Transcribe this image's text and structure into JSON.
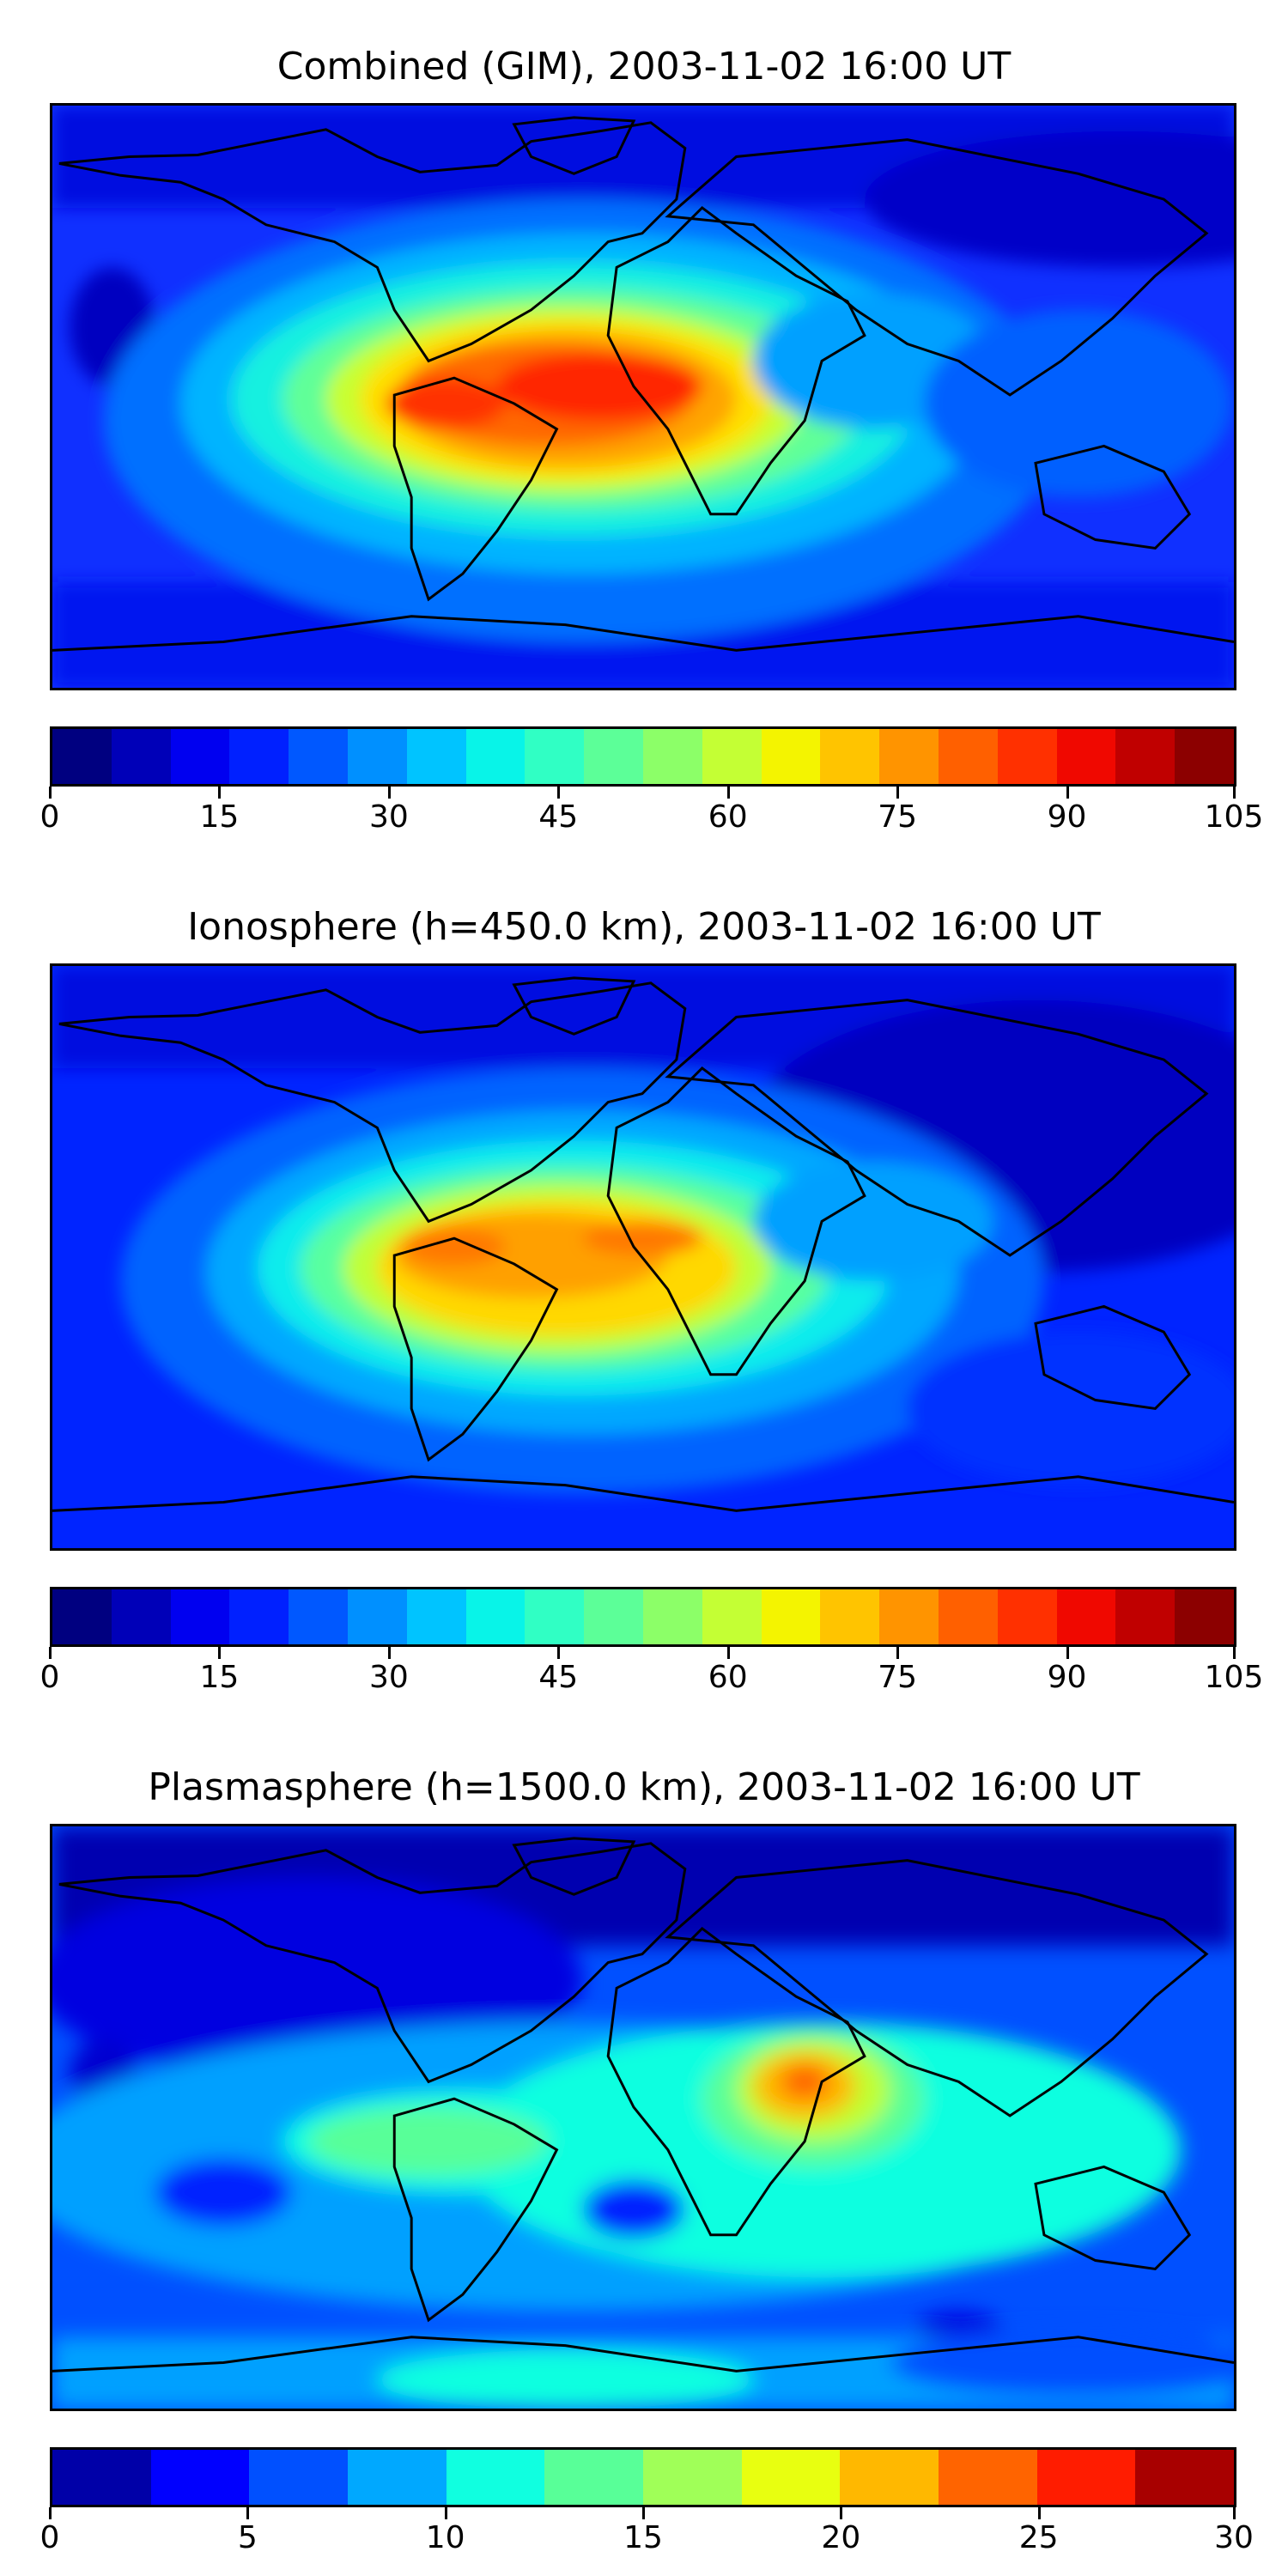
{
  "panels": [
    {
      "title": "Combined (GIM), 2003-11-02 16:00 UT",
      "colorbar": {
        "ticks": [
          "0",
          "15",
          "30",
          "45",
          "60",
          "75",
          "90",
          "105"
        ],
        "tick_values": [
          0,
          15,
          30,
          45,
          60,
          75,
          90,
          105
        ],
        "vmin": 0,
        "vmax": 105,
        "colors": [
          "#000080",
          "#0000b8",
          "#0000f0",
          "#0020ff",
          "#0058ff",
          "#0090ff",
          "#00c4ff",
          "#08f4e8",
          "#30ffc4",
          "#5cff98",
          "#8cff68",
          "#c4ff34",
          "#f4f400",
          "#ffc400",
          "#ff9400",
          "#ff6000",
          "#ff3000",
          "#f00800",
          "#c00000",
          "#8c0000"
        ]
      }
    },
    {
      "title": "Ionosphere  (h=450.0 km), 2003-11-02 16:00 UT",
      "colorbar": {
        "ticks": [
          "0",
          "15",
          "30",
          "45",
          "60",
          "75",
          "90",
          "105"
        ],
        "tick_values": [
          0,
          15,
          30,
          45,
          60,
          75,
          90,
          105
        ],
        "vmin": 0,
        "vmax": 105,
        "colors": [
          "#000080",
          "#0000b8",
          "#0000f0",
          "#0020ff",
          "#0058ff",
          "#0090ff",
          "#00c4ff",
          "#08f4e8",
          "#30ffc4",
          "#5cff98",
          "#8cff68",
          "#c4ff34",
          "#f4f400",
          "#ffc400",
          "#ff9400",
          "#ff6000",
          "#ff3000",
          "#f00800",
          "#c00000",
          "#8c0000"
        ]
      }
    },
    {
      "title": "Plasmasphere (h=1500.0 km), 2003-11-02 16:00 UT",
      "colorbar": {
        "ticks": [
          "0",
          "5",
          "10",
          "15",
          "20",
          "25",
          "30"
        ],
        "tick_values": [
          0,
          5,
          10,
          15,
          20,
          25,
          30
        ],
        "vmin": 0,
        "vmax": 30,
        "colors": [
          "#0000a8",
          "#0000ff",
          "#0050ff",
          "#00a8ff",
          "#10ffe0",
          "#58ff98",
          "#a0ff58",
          "#e8ff10",
          "#ffb800",
          "#ff6400",
          "#ff1c00",
          "#a80000"
        ]
      }
    }
  ]
}
